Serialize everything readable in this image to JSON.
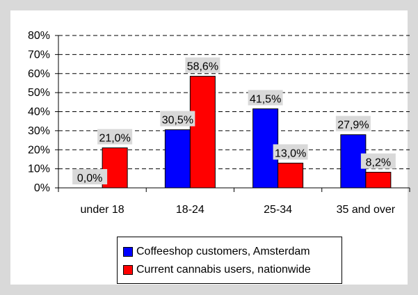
{
  "chart_data": {
    "type": "bar",
    "categories": [
      "under 18",
      "18-24",
      "25-34",
      "35 and over"
    ],
    "series": [
      {
        "name": "Coffeeshop customers, Amsterdam",
        "color": "#0000ff",
        "values": [
          0.0,
          30.5,
          41.5,
          27.9
        ],
        "labels": [
          "0,0%",
          "30,5%",
          "41,5%",
          "27,9%"
        ]
      },
      {
        "name": "Current cannabis users, nationwide",
        "color": "#ff0000",
        "values": [
          21.0,
          58.6,
          13.0,
          8.2
        ],
        "labels": [
          "21,0%",
          "58,6%",
          "13,0%",
          "8,2%"
        ]
      }
    ],
    "ylim": [
      0,
      80
    ],
    "yticks": [
      "0%",
      "10%",
      "20%",
      "30%",
      "40%",
      "50%",
      "60%",
      "70%",
      "80%"
    ],
    "grid": true,
    "legend": "bottom",
    "plot_background": "#ffffff",
    "outer_background": "#d9d9d9",
    "title": "",
    "xlabel": "",
    "ylabel": ""
  }
}
